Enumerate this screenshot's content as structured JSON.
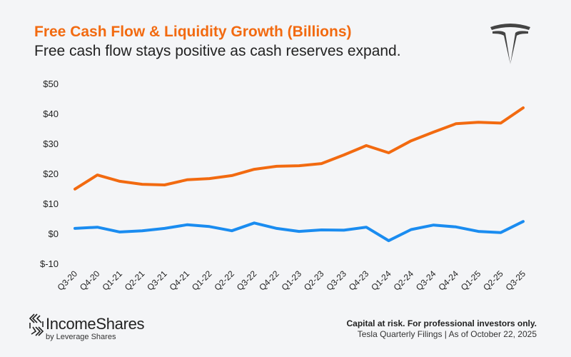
{
  "header": {
    "title": "Free Cash Flow & Liquidity Growth (Billions)",
    "subtitle": "Free cash flow stays positive as cash reserves expand."
  },
  "logo": {
    "name": "tesla-logo"
  },
  "footer": {
    "brand": "IncomeShares",
    "brand_sub": "by Leverage Shares",
    "disclaimer": "Capital at risk. For professional investors only.",
    "source": "Tesla Quarterly Filings | As of October 22, 2025"
  },
  "chart_data": {
    "type": "line",
    "title": "Free Cash Flow & Liquidity Growth (Billions)",
    "xlabel": "",
    "ylabel": "",
    "ylim": [
      -10,
      50
    ],
    "yticks": [
      -10,
      0,
      10,
      20,
      30,
      40,
      50
    ],
    "ytick_labels": [
      "$-10",
      "$0",
      "$10",
      "$20",
      "$30",
      "$40",
      "$50"
    ],
    "grid": false,
    "categories": [
      "Q3-20",
      "Q4-20",
      "Q1-21",
      "Q2-21",
      "Q3-21",
      "Q4-21",
      "Q1-22",
      "Q2-22",
      "Q3-22",
      "Q4-22",
      "Q1-23",
      "Q2-23",
      "Q3-23",
      "Q4-23",
      "Q1-24",
      "Q2-24",
      "Q3-24",
      "Q4-24",
      "Q1-25",
      "Q2-25",
      "Q3-25"
    ],
    "series": [
      {
        "color": "#f26a10",
        "values": [
          14.8,
          19.5,
          17.4,
          16.4,
          16.2,
          17.9,
          18.3,
          19.3,
          21.4,
          22.4,
          22.6,
          23.3,
          26.2,
          29.3,
          26.9,
          30.9,
          33.8,
          36.6,
          37.1,
          36.8,
          41.9
        ]
      },
      {
        "color": "#1a8cf0",
        "values": [
          1.7,
          2.1,
          0.5,
          0.9,
          1.7,
          2.9,
          2.3,
          0.9,
          3.5,
          1.7,
          0.7,
          1.2,
          1.1,
          2.1,
          -2.4,
          1.3,
          2.8,
          2.2,
          0.7,
          0.3,
          4.0
        ]
      }
    ]
  }
}
